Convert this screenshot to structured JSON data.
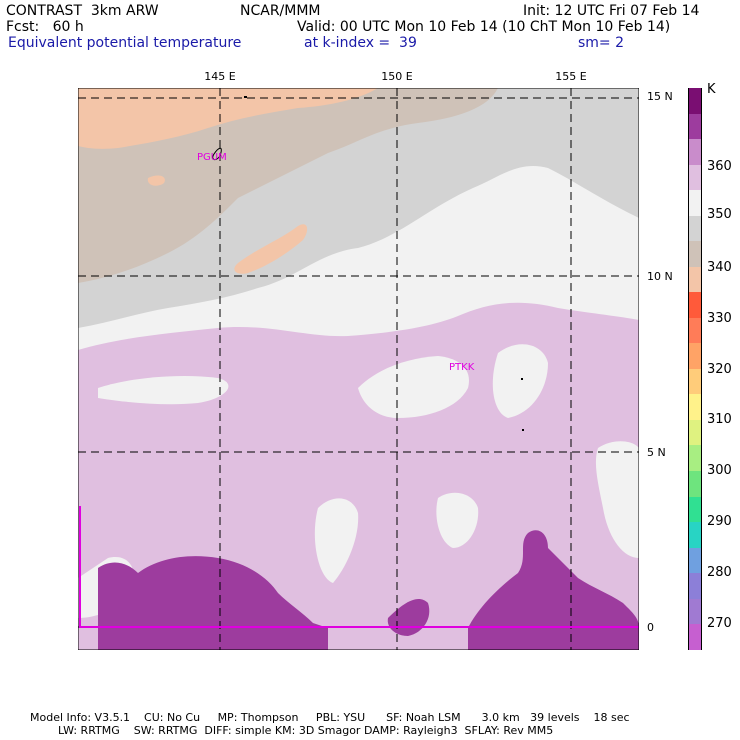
{
  "header": {
    "model": "CONTRAST  3km ARW",
    "org": "NCAR/MMM",
    "init": "Init: 12 UTC Fri 07 Feb 14",
    "fcst": "Fcst:   60 h",
    "valid": "Valid: 00 UTC Mon 10 Feb 14 (10 ChT Mon 10 Feb 14)",
    "field": "Equivalent potential temperature",
    "level": "at k-index =  39",
    "smooth": "sm= 2"
  },
  "map": {
    "lon_labels": [
      "145 E",
      "150 E",
      "155 E"
    ],
    "lat_labels": [
      "15 N",
      "10 N",
      "5 N",
      "0"
    ],
    "stations": [
      "PGUM",
      "PTKK"
    ]
  },
  "colorbar": {
    "unit": "K",
    "labels": [
      "360",
      "350",
      "340",
      "330",
      "320",
      "310",
      "300",
      "290",
      "280",
      "270"
    ],
    "colors": [
      "#7a0e72",
      "#9d3c9e",
      "#c98ccb",
      "#e0bfe0",
      "#f2f2f2",
      "#d3d3d3",
      "#cfc2b8",
      "#f3c5a8",
      "#ff5a3a",
      "#ff7c58",
      "#ffa366",
      "#ffcc7a",
      "#fff28a",
      "#dff280",
      "#a8ee82",
      "#6ee47e",
      "#30e092",
      "#28d4c4",
      "#6fa0e0",
      "#8c7fd8",
      "#a07ad2",
      "#c65fd0"
    ]
  },
  "footer": {
    "line1": "Model Info: V3.5.1    CU: No Cu     MP: Thompson     PBL: YSU      SF: Noah LSM      3.0 km   39 levels    18 sec",
    "line2": "LW: RRTMG    SW: RRTMG  DIFF: simple KM: 3D Smagor DAMP: Rayleigh3  SFLAY: Rev MM5"
  }
}
